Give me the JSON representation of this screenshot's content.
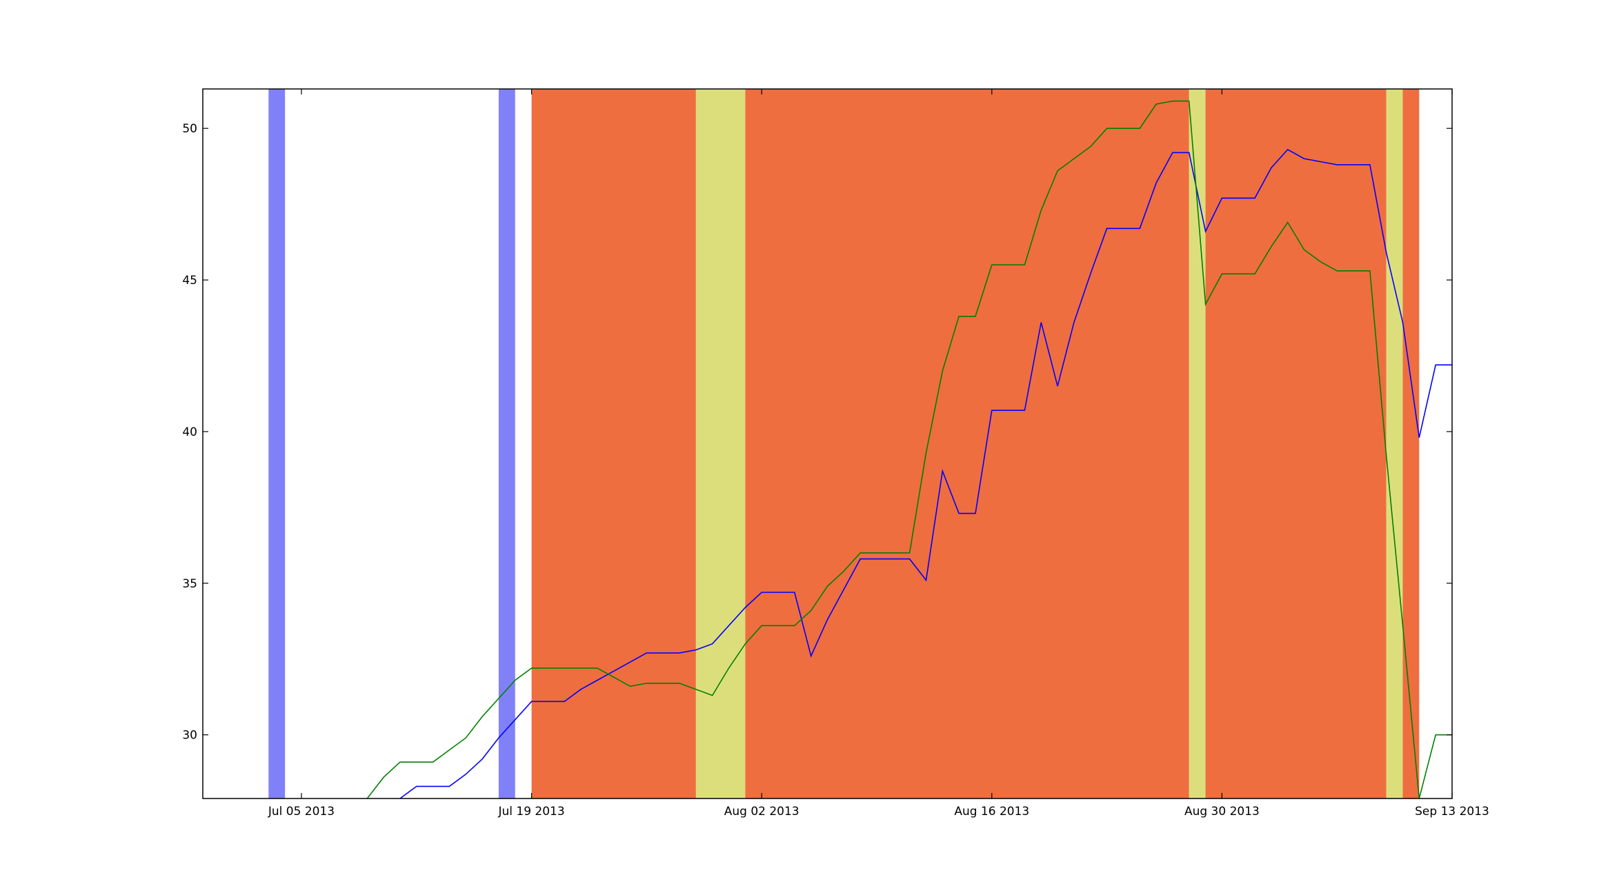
{
  "chart_data": {
    "type": "line",
    "title": "",
    "xlabel": "",
    "ylabel": "",
    "x_axis": {
      "kind": "date",
      "range": [
        "2013-06-29",
        "2013-09-13"
      ],
      "ticks": [
        {
          "date": "2013-07-05",
          "label": "Jul 05 2013"
        },
        {
          "date": "2013-07-19",
          "label": "Jul 19 2013"
        },
        {
          "date": "2013-08-02",
          "label": "Aug 02 2013"
        },
        {
          "date": "2013-08-16",
          "label": "Aug 16 2013"
        },
        {
          "date": "2013-08-30",
          "label": "Aug 30 2013"
        },
        {
          "date": "2013-09-13",
          "label": "Sep 13 2013"
        }
      ]
    },
    "y_axis": {
      "range": [
        27.9,
        51.3
      ],
      "ticks": [
        {
          "value": 30,
          "label": "30"
        },
        {
          "value": 35,
          "label": "35"
        },
        {
          "value": 40,
          "label": "40"
        },
        {
          "value": 45,
          "label": "45"
        },
        {
          "value": 50,
          "label": "50"
        }
      ]
    },
    "grid": false,
    "legend": "none",
    "bands": [
      {
        "start": "2013-07-03",
        "end": "2013-07-04",
        "color": "#8080f8"
      },
      {
        "start": "2013-07-17",
        "end": "2013-07-18",
        "color": "#8080f8"
      },
      {
        "start": "2013-07-19",
        "end": "2013-07-29",
        "color": "#ee6e40"
      },
      {
        "start": "2013-07-29",
        "end": "2013-08-01",
        "color": "#dcde7c"
      },
      {
        "start": "2013-08-01",
        "end": "2013-08-28",
        "color": "#ee6e40"
      },
      {
        "start": "2013-08-28",
        "end": "2013-08-29",
        "color": "#dcde7c"
      },
      {
        "start": "2013-08-29",
        "end": "2013-09-09",
        "color": "#ee6e40"
      },
      {
        "start": "2013-09-09",
        "end": "2013-09-10",
        "color": "#dcde7c"
      },
      {
        "start": "2013-09-10",
        "end": "2013-09-11",
        "color": "#ee6e40"
      }
    ],
    "series": [
      {
        "color": "#0000ff",
        "points": [
          [
            "2013-07-11",
            27.9
          ],
          [
            "2013-07-12",
            28.3
          ],
          [
            "2013-07-13",
            28.3
          ],
          [
            "2013-07-14",
            28.3
          ],
          [
            "2013-07-15",
            28.7
          ],
          [
            "2013-07-16",
            29.2
          ],
          [
            "2013-07-17",
            29.9
          ],
          [
            "2013-07-18",
            30.5
          ],
          [
            "2013-07-19",
            31.1
          ],
          [
            "2013-07-20",
            31.1
          ],
          [
            "2013-07-21",
            31.1
          ],
          [
            "2013-07-22",
            31.5
          ],
          [
            "2013-07-23",
            31.8
          ],
          [
            "2013-07-24",
            32.1
          ],
          [
            "2013-07-25",
            32.4
          ],
          [
            "2013-07-26",
            32.7
          ],
          [
            "2013-07-27",
            32.7
          ],
          [
            "2013-07-28",
            32.7
          ],
          [
            "2013-07-29",
            32.8
          ],
          [
            "2013-07-30",
            33.0
          ],
          [
            "2013-07-31",
            33.6
          ],
          [
            "2013-08-01",
            34.2
          ],
          [
            "2013-08-02",
            34.7
          ],
          [
            "2013-08-03",
            34.7
          ],
          [
            "2013-08-04",
            34.7
          ],
          [
            "2013-08-05",
            32.6
          ],
          [
            "2013-08-06",
            33.8
          ],
          [
            "2013-08-07",
            34.8
          ],
          [
            "2013-08-08",
            35.8
          ],
          [
            "2013-08-09",
            35.8
          ],
          [
            "2013-08-10",
            35.8
          ],
          [
            "2013-08-11",
            35.8
          ],
          [
            "2013-08-12",
            35.1
          ],
          [
            "2013-08-13",
            38.7
          ],
          [
            "2013-08-14",
            37.3
          ],
          [
            "2013-08-15",
            37.3
          ],
          [
            "2013-08-16",
            40.7
          ],
          [
            "2013-08-17",
            40.7
          ],
          [
            "2013-08-18",
            40.7
          ],
          [
            "2013-08-19",
            43.6
          ],
          [
            "2013-08-20",
            41.5
          ],
          [
            "2013-08-21",
            43.6
          ],
          [
            "2013-08-22",
            45.2
          ],
          [
            "2013-08-23",
            46.7
          ],
          [
            "2013-08-24",
            46.7
          ],
          [
            "2013-08-25",
            46.7
          ],
          [
            "2013-08-26",
            48.2
          ],
          [
            "2013-08-27",
            49.2
          ],
          [
            "2013-08-28",
            49.2
          ],
          [
            "2013-08-29",
            46.6
          ],
          [
            "2013-08-30",
            47.7
          ],
          [
            "2013-08-31",
            47.7
          ],
          [
            "2013-09-01",
            47.7
          ],
          [
            "2013-09-02",
            48.7
          ],
          [
            "2013-09-03",
            49.3
          ],
          [
            "2013-09-04",
            49.0
          ],
          [
            "2013-09-05",
            48.9
          ],
          [
            "2013-09-06",
            48.8
          ],
          [
            "2013-09-07",
            48.8
          ],
          [
            "2013-09-08",
            48.8
          ],
          [
            "2013-09-09",
            45.9
          ],
          [
            "2013-09-10",
            43.6
          ],
          [
            "2013-09-11",
            39.8
          ],
          [
            "2013-09-12",
            42.2
          ],
          [
            "2013-09-13",
            42.2
          ]
        ]
      },
      {
        "color": "#008000",
        "points": [
          [
            "2013-07-09",
            27.9
          ],
          [
            "2013-07-10",
            28.6
          ],
          [
            "2013-07-11",
            29.1
          ],
          [
            "2013-07-12",
            29.1
          ],
          [
            "2013-07-13",
            29.1
          ],
          [
            "2013-07-14",
            29.5
          ],
          [
            "2013-07-15",
            29.9
          ],
          [
            "2013-07-16",
            30.6
          ],
          [
            "2013-07-17",
            31.2
          ],
          [
            "2013-07-18",
            31.8
          ],
          [
            "2013-07-19",
            32.2
          ],
          [
            "2013-07-20",
            32.2
          ],
          [
            "2013-07-21",
            32.2
          ],
          [
            "2013-07-22",
            32.2
          ],
          [
            "2013-07-23",
            32.2
          ],
          [
            "2013-07-24",
            31.9
          ],
          [
            "2013-07-25",
            31.6
          ],
          [
            "2013-07-26",
            31.7
          ],
          [
            "2013-07-27",
            31.7
          ],
          [
            "2013-07-28",
            31.7
          ],
          [
            "2013-07-29",
            31.5
          ],
          [
            "2013-07-30",
            31.3
          ],
          [
            "2013-07-31",
            32.2
          ],
          [
            "2013-08-01",
            33.0
          ],
          [
            "2013-08-02",
            33.6
          ],
          [
            "2013-08-03",
            33.6
          ],
          [
            "2013-08-04",
            33.6
          ],
          [
            "2013-08-05",
            34.1
          ],
          [
            "2013-08-06",
            34.9
          ],
          [
            "2013-08-07",
            35.4
          ],
          [
            "2013-08-08",
            36.0
          ],
          [
            "2013-08-09",
            36.0
          ],
          [
            "2013-08-10",
            36.0
          ],
          [
            "2013-08-11",
            36.0
          ],
          [
            "2013-08-12",
            39.3
          ],
          [
            "2013-08-13",
            42.0
          ],
          [
            "2013-08-14",
            43.8
          ],
          [
            "2013-08-15",
            43.8
          ],
          [
            "2013-08-16",
            45.5
          ],
          [
            "2013-08-17",
            45.5
          ],
          [
            "2013-08-18",
            45.5
          ],
          [
            "2013-08-19",
            47.3
          ],
          [
            "2013-08-20",
            48.6
          ],
          [
            "2013-08-21",
            49.0
          ],
          [
            "2013-08-22",
            49.4
          ],
          [
            "2013-08-23",
            50.0
          ],
          [
            "2013-08-24",
            50.0
          ],
          [
            "2013-08-25",
            50.0
          ],
          [
            "2013-08-26",
            50.8
          ],
          [
            "2013-08-27",
            50.9
          ],
          [
            "2013-08-28",
            50.9
          ],
          [
            "2013-08-29",
            44.2
          ],
          [
            "2013-08-30",
            45.2
          ],
          [
            "2013-08-31",
            45.2
          ],
          [
            "2013-09-01",
            45.2
          ],
          [
            "2013-09-02",
            46.1
          ],
          [
            "2013-09-03",
            46.9
          ],
          [
            "2013-09-04",
            46.0
          ],
          [
            "2013-09-05",
            45.6
          ],
          [
            "2013-09-06",
            45.3
          ],
          [
            "2013-09-07",
            45.3
          ],
          [
            "2013-09-08",
            45.3
          ],
          [
            "2013-09-09",
            39.2
          ],
          [
            "2013-09-10",
            33.6
          ],
          [
            "2013-09-11",
            27.9
          ],
          [
            "2013-09-12",
            30.0
          ],
          [
            "2013-09-13",
            30.0
          ]
        ]
      }
    ]
  }
}
